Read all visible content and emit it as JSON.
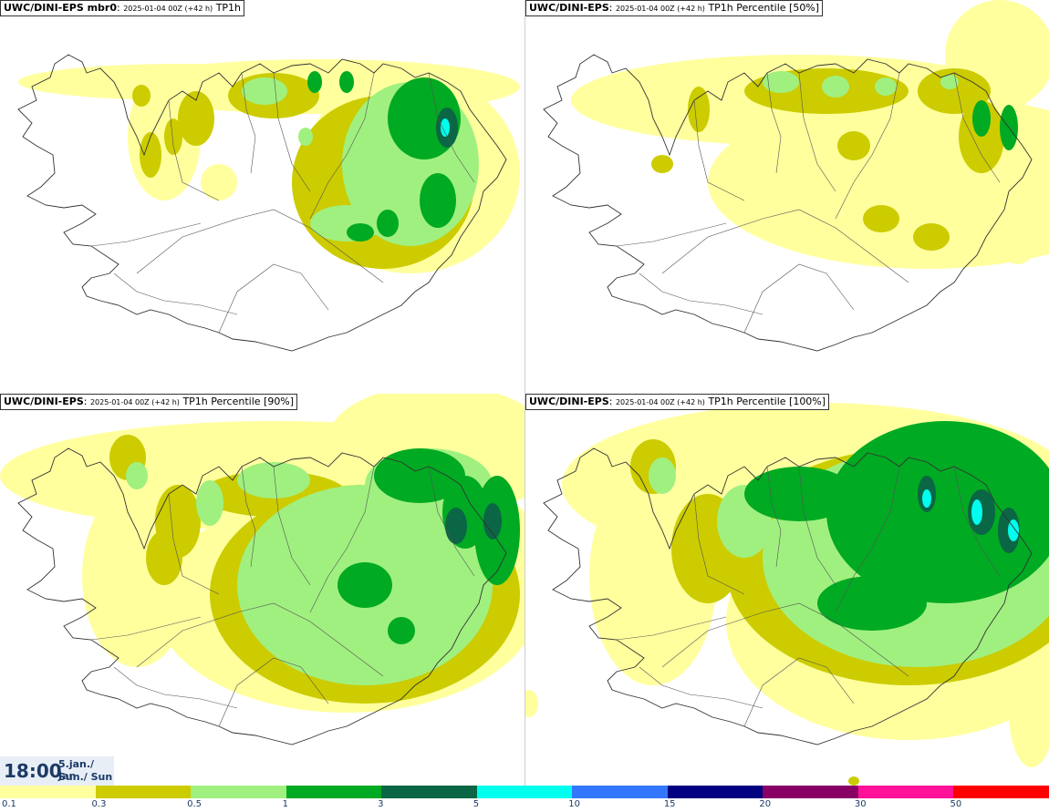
{
  "panels": [
    {
      "model": "UWC/DINI-EPS mbr0",
      "date": "2025-01-04 00Z (+42 h)",
      "field": "TP1h",
      "name": "panel-mbr0"
    },
    {
      "model": "UWC/DINI-EPS",
      "date": "2025-01-04 00Z (+42 h)",
      "field": "TP1h Percentile [50%]",
      "name": "panel-p50"
    },
    {
      "model": "UWC/DINI-EPS",
      "date": "2025-01-04 00Z (+42 h)",
      "field": "TP1h Percentile [90%]",
      "name": "panel-p90"
    },
    {
      "model": "UWC/DINI-EPS",
      "date": "2025-01-04 00Z (+42 h)",
      "field": "TP1h Percentile [100%]",
      "name": "panel-p100"
    }
  ],
  "time": {
    "clock": "18:00",
    "date_line1": "5.jan./ Jan",
    "date_line2": "Sun./ Sun"
  },
  "legend": {
    "ticks": [
      "0.1",
      "0.3",
      "0.5",
      "1",
      "3",
      "5",
      "10",
      "15",
      "20",
      "30",
      "50"
    ],
    "colors": [
      "#ffff9e",
      "#cccc00",
      "#a0f080",
      "#00aa22",
      "#0a6644",
      "#00ffee",
      "#3377ff",
      "#000080",
      "#880066",
      "#ff1199",
      "#ff0000"
    ]
  },
  "palette": {
    "light_yellow": "#ffff9e",
    "olive": "#cccc00",
    "light_green": "#a0f080",
    "green": "#00aa22",
    "dark_green": "#0a6644",
    "cyan": "#00ffee",
    "coast": "#333333"
  }
}
